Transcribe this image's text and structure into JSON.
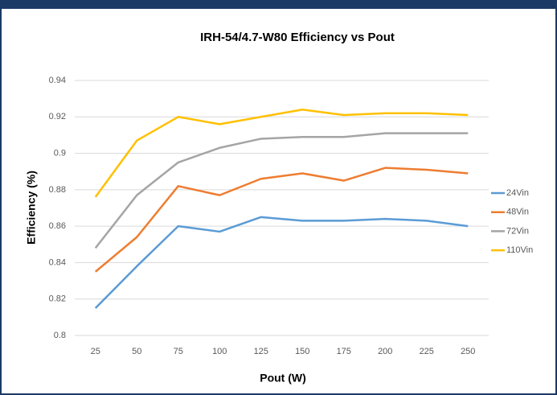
{
  "chart_data": {
    "type": "line",
    "title": "IRH-54/4.7-W80 Efficiency vs Pout",
    "x_label": "Pout (W)",
    "y_label": "Efficiency (%)",
    "categories": [
      "25",
      "50",
      "75",
      "100",
      "125",
      "150",
      "175",
      "200",
      "225",
      "250"
    ],
    "series": [
      {
        "name": "24Vin",
        "color": "#5b9bd5",
        "values": [
          0.815,
          0.838,
          0.86,
          0.857,
          0.865,
          0.863,
          0.863,
          0.864,
          0.863,
          0.86
        ]
      },
      {
        "name": "48Vin",
        "color": "#ed7d31",
        "values": [
          0.835,
          0.854,
          0.882,
          0.877,
          0.886,
          0.889,
          0.885,
          0.892,
          0.891,
          0.889
        ]
      },
      {
        "name": "72Vin",
        "color": "#a5a5a5",
        "values": [
          0.848,
          0.877,
          0.895,
          0.903,
          0.908,
          0.909,
          0.909,
          0.911,
          0.911,
          0.911
        ]
      },
      {
        "name": "110Vin",
        "color": "#ffc000",
        "values": [
          0.876,
          0.907,
          0.92,
          0.916,
          0.92,
          0.924,
          0.921,
          0.922,
          0.922,
          0.921
        ]
      }
    ],
    "ylim": [
      0.8,
      0.94
    ],
    "yticks": [
      0.8,
      0.82,
      0.84,
      0.86,
      0.88,
      0.9,
      0.92,
      0.94
    ],
    "grid": true,
    "legend": "right"
  }
}
